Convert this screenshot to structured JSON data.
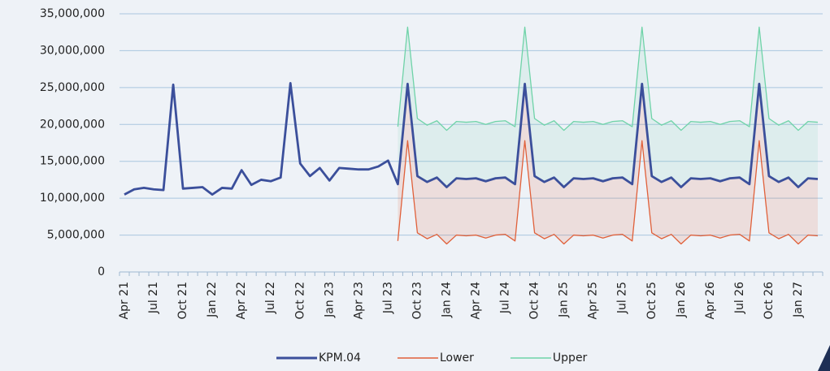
{
  "chart_data": {
    "type": "line",
    "categories": [
      "Apr 21",
      null,
      null,
      "Jul 21",
      null,
      null,
      "Oct 21",
      null,
      null,
      "Jan 22",
      null,
      null,
      "Apr 22",
      null,
      null,
      "Jul 22",
      null,
      null,
      "Oct 22",
      null,
      null,
      "Jan 23",
      null,
      null,
      "Apr 23",
      null,
      null,
      "Jul 23",
      null,
      null,
      "Oct 23",
      null,
      null,
      "Jan 24",
      null,
      null,
      "Apr 24",
      null,
      null,
      "Jul 24",
      null,
      null,
      "Oct 24",
      null,
      null,
      "Jan 25",
      null,
      null,
      "Apr 25",
      null,
      null,
      "Jul 25",
      null,
      null,
      "Oct 25",
      null,
      null,
      "Jan 26",
      null,
      null,
      "Apr 26",
      null,
      null,
      "Jul 26",
      null,
      null,
      "Oct 26",
      null,
      null,
      "Jan 27",
      null,
      null
    ],
    "series": [
      {
        "name": "KPM.04",
        "color": "#3b4f9b",
        "values": [
          10500000,
          11200000,
          11400000,
          11200000,
          11100000,
          25400000,
          11300000,
          11400000,
          11500000,
          10500000,
          11400000,
          11300000,
          13800000,
          11800000,
          12500000,
          12300000,
          12800000,
          25600000,
          14700000,
          13000000,
          14100000,
          12400000,
          14100000,
          14000000,
          13900000,
          13900000,
          14300000,
          15100000,
          11900000,
          25500000,
          13000000,
          12200000,
          12800000,
          11500000,
          12700000,
          12600000,
          12700000,
          12300000,
          12700000,
          12800000,
          11900000,
          25500000,
          13000000,
          12200000,
          12800000,
          11500000,
          12700000,
          12600000,
          12700000,
          12300000,
          12700000,
          12800000,
          11900000,
          25500000,
          13000000,
          12200000,
          12800000,
          11500000,
          12700000,
          12600000,
          12700000,
          12300000,
          12700000,
          12800000,
          11900000,
          25500000,
          13000000,
          12200000,
          12800000,
          11500000,
          12700000,
          12600000
        ]
      },
      {
        "name": "Lower",
        "color": "#e0603a",
        "values": [
          null,
          null,
          null,
          null,
          null,
          null,
          null,
          null,
          null,
          null,
          null,
          null,
          null,
          null,
          null,
          null,
          null,
          null,
          null,
          null,
          null,
          null,
          null,
          null,
          null,
          null,
          null,
          null,
          4200000,
          17800000,
          5300000,
          4500000,
          5100000,
          3800000,
          5000000,
          4900000,
          5000000,
          4600000,
          5000000,
          5100000,
          4200000,
          17800000,
          5300000,
          4500000,
          5100000,
          3800000,
          5000000,
          4900000,
          5000000,
          4600000,
          5000000,
          5100000,
          4200000,
          17800000,
          5300000,
          4500000,
          5100000,
          3800000,
          5000000,
          4900000,
          5000000,
          4600000,
          5000000,
          5100000,
          4200000,
          17800000,
          5300000,
          4500000,
          5100000,
          3800000,
          5000000,
          4900000
        ]
      },
      {
        "name": "Upper",
        "color": "#6fd3a8",
        "values": [
          null,
          null,
          null,
          null,
          null,
          null,
          null,
          null,
          null,
          null,
          null,
          null,
          null,
          null,
          null,
          null,
          null,
          null,
          null,
          null,
          null,
          null,
          null,
          null,
          null,
          null,
          null,
          null,
          19700000,
          33200000,
          20800000,
          19900000,
          20500000,
          19200000,
          20400000,
          20300000,
          20400000,
          20000000,
          20400000,
          20500000,
          19700000,
          33200000,
          20800000,
          19900000,
          20500000,
          19200000,
          20400000,
          20300000,
          20400000,
          20000000,
          20400000,
          20500000,
          19700000,
          33200000,
          20800000,
          19900000,
          20500000,
          19200000,
          20400000,
          20300000,
          20400000,
          20000000,
          20400000,
          20500000,
          19700000,
          33200000,
          20800000,
          19900000,
          20500000,
          19200000,
          20400000,
          20300000
        ]
      }
    ],
    "ylim": [
      0,
      35000000
    ],
    "yticks": [
      0,
      {
        "value": 5000000,
        "label": "5,000,000"
      },
      {
        "value": 10000000,
        "label": "10,000,000"
      },
      {
        "value": 15000000,
        "label": "15,000,000"
      },
      {
        "value": 20000000,
        "label": "20,000,000"
      },
      {
        "value": 25000000,
        "label": "25,000,000"
      },
      {
        "value": 30000000,
        "label": "30,000,000"
      },
      {
        "value": 35000000,
        "label": "35,000,000"
      }
    ],
    "grid": true,
    "legend": "bottom"
  }
}
